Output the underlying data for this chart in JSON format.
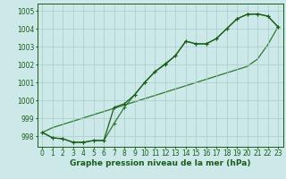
{
  "title": "",
  "xlabel": "Graphe pression niveau de la mer (hPa)",
  "x": [
    0,
    1,
    2,
    3,
    4,
    5,
    6,
    7,
    8,
    9,
    10,
    11,
    12,
    13,
    14,
    15,
    16,
    17,
    18,
    19,
    20,
    21,
    22,
    23
  ],
  "line1": [
    998.2,
    997.9,
    997.85,
    997.65,
    997.65,
    997.75,
    997.75,
    999.6,
    999.8,
    1000.3,
    1001.0,
    1001.6,
    1002.0,
    1002.5,
    1003.3,
    1003.15,
    1003.15,
    1003.45,
    1004.0,
    1004.55,
    1004.8,
    1004.82,
    1004.7,
    1004.1
  ],
  "line2": [
    998.2,
    997.9,
    997.85,
    997.65,
    997.65,
    997.75,
    997.75,
    998.7,
    999.6,
    1000.3,
    1001.0,
    1001.6,
    1002.05,
    1002.5,
    1003.3,
    1003.15,
    1003.15,
    1003.45,
    1004.0,
    1004.55,
    1004.8,
    1004.82,
    1004.7,
    1004.1
  ],
  "line_straight": [
    998.2,
    998.47,
    998.65,
    998.83,
    999.01,
    999.19,
    999.37,
    999.55,
    999.73,
    999.91,
    1000.09,
    1000.27,
    1000.45,
    1000.63,
    1000.81,
    1000.99,
    1001.17,
    1001.35,
    1001.53,
    1001.71,
    1001.89,
    1002.3,
    1003.1,
    1004.1
  ],
  "line_color_dark": "#1a5c1a",
  "line_color_mid": "#2d7a2d",
  "bg_color": "#cce8e8",
  "grid_color": "#aacccc",
  "ylim": [
    997.4,
    1005.4
  ],
  "yticks": [
    998,
    999,
    1000,
    1001,
    1002,
    1003,
    1004,
    1005
  ],
  "xlim": [
    -0.5,
    23.5
  ],
  "xticks": [
    0,
    1,
    2,
    3,
    4,
    5,
    6,
    7,
    8,
    9,
    10,
    11,
    12,
    13,
    14,
    15,
    16,
    17,
    18,
    19,
    20,
    21,
    22,
    23
  ],
  "marker": "+",
  "markersize": 3.5,
  "linewidth": 0.9,
  "xlabel_fontsize": 6.5,
  "tick_fontsize": 5.5
}
